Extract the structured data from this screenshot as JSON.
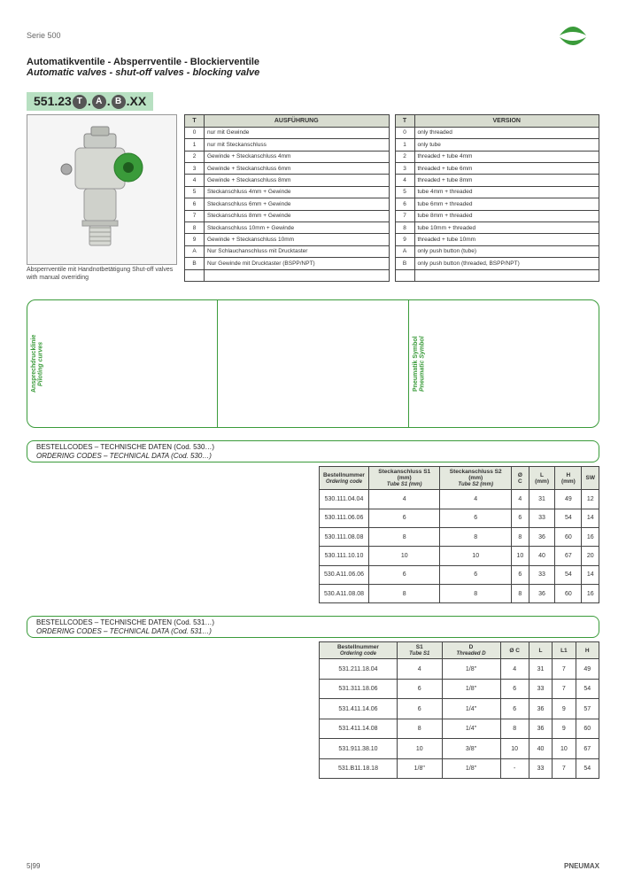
{
  "header": {
    "series_label": "Serie 500",
    "title_de": "Automatikventile - Absperrventile - Blockierventile",
    "title_en": "Automatic valves - shut-off valves - blocking valve"
  },
  "partcode": {
    "prefix": "551.23",
    "t": "T",
    "a": "A",
    "b": "B",
    "suffix": ".XX"
  },
  "product_caption": "Absperrventile mit Handnotbetätigung\nShut-off valves with manual overriding",
  "ausfuehrung": {
    "header": "AUSFÜHRUNG",
    "col_t": "T",
    "rows": [
      {
        "c": "0",
        "t": "nur mit Gewinde"
      },
      {
        "c": "1",
        "t": "nur mit Steckanschluss"
      },
      {
        "c": "2",
        "t": "Gewinde + Steckanschluss 4mm"
      },
      {
        "c": "3",
        "t": "Gewinde + Steckanschluss 6mm"
      },
      {
        "c": "4",
        "t": "Gewinde + Steckanschluss 8mm"
      },
      {
        "c": "5",
        "t": "Steckanschluss 4mm + Gewinde"
      },
      {
        "c": "6",
        "t": "Steckanschluss 6mm + Gewinde"
      },
      {
        "c": "7",
        "t": "Steckanschluss 8mm + Gewinde"
      },
      {
        "c": "8",
        "t": "Steckanschluss 10mm + Gewinde"
      },
      {
        "c": "9",
        "t": "Gewinde + Steckanschluss 10mm"
      },
      {
        "c": "A",
        "t": "Nur Schlauchanschluss mit Drucktaster"
      },
      {
        "c": "B",
        "t": "Nur Gewinde mit Drucktaster (BSPP/NPT)"
      },
      {
        "c": "",
        "t": ""
      }
    ]
  },
  "version": {
    "header": "VERSION",
    "col_t": "T",
    "rows": [
      {
        "c": "0",
        "t": "only threaded"
      },
      {
        "c": "1",
        "t": "only tube"
      },
      {
        "c": "2",
        "t": "threaded + tube 4mm"
      },
      {
        "c": "3",
        "t": "threaded + tube 6mm"
      },
      {
        "c": "4",
        "t": "threaded + tube 8mm"
      },
      {
        "c": "5",
        "t": "tube 4mm + threaded"
      },
      {
        "c": "6",
        "t": "tube 6mm + threaded"
      },
      {
        "c": "7",
        "t": "tube 8mm + threaded"
      },
      {
        "c": "8",
        "t": "tube 10mm + threaded"
      },
      {
        "c": "9",
        "t": "threaded + tube 10mm"
      },
      {
        "c": "A",
        "t": "only push button (tube)"
      },
      {
        "c": "B",
        "t": "only push button (threaded, BSPP/NPT)"
      },
      {
        "c": "",
        "t": ""
      }
    ]
  },
  "diagrams": {
    "label1_de": "Ansprechdrucklinie",
    "label1_en": "Piloting curves",
    "label3_de": "Pneumatik Symbol",
    "label3_en": "Pneumatic Symbol"
  },
  "section_530": {
    "hdr_de": "BESTELLCODES – TECHNISCHE DATEN (Cod. 530…)",
    "hdr_en": "ORDERING CODES – TECHNICAL DATA (Cod. 530…)",
    "table": {
      "head": [
        "Bestellnummer",
        "Steckanschluss S1 (mm)",
        "Steckanschluss S2 (mm)",
        "Ø C",
        "L (mm)",
        "H (mm)",
        "SW"
      ],
      "head_en": [
        "Ordering code",
        "Tube S1 (mm)",
        "Tube S2 (mm)",
        "",
        "",
        "",
        ""
      ],
      "rows": [
        [
          "530.111.04.04",
          "4",
          "4",
          "4",
          "31",
          "49",
          "12"
        ],
        [
          "530.111.06.06",
          "6",
          "6",
          "6",
          "33",
          "54",
          "14"
        ],
        [
          "530.111.08.08",
          "8",
          "8",
          "8",
          "36",
          "60",
          "16"
        ],
        [
          "530.111.10.10",
          "10",
          "10",
          "10",
          "40",
          "67",
          "20"
        ],
        [
          "530.A11.06.06",
          "6",
          "6",
          "6",
          "33",
          "54",
          "14"
        ],
        [
          "530.A11.08.08",
          "8",
          "8",
          "8",
          "36",
          "60",
          "16"
        ]
      ]
    }
  },
  "section_531": {
    "hdr_de": "BESTELLCODES – TECHNISCHE DATEN (Cod. 531…)",
    "hdr_en": "ORDERING CODES – TECHNICAL DATA (Cod. 531…)",
    "table": {
      "head": [
        "Bestellnummer",
        "S1",
        "D",
        "Ø C",
        "L",
        "L1",
        "H"
      ],
      "head_en": [
        "Ordering code",
        "Tube S1",
        "Threaded D",
        "",
        "",
        "",
        ""
      ],
      "rows": [
        [
          "531.211.18.04",
          "4",
          "1/8\"",
          "4",
          "31",
          "7",
          "49"
        ],
        [
          "531.311.18.06",
          "6",
          "1/8\"",
          "6",
          "33",
          "7",
          "54"
        ],
        [
          "531.411.14.06",
          "6",
          "1/4\"",
          "6",
          "36",
          "9",
          "57"
        ],
        [
          "531.411.14.08",
          "8",
          "1/4\"",
          "8",
          "36",
          "9",
          "60"
        ],
        [
          "531.911.38.10",
          "10",
          "3/8\"",
          "10",
          "40",
          "10",
          "67"
        ],
        [
          "531.B11.18.18",
          "1/8\"",
          "1/8\"",
          "-",
          "33",
          "7",
          "54"
        ]
      ]
    }
  },
  "footer": {
    "page": "5|99",
    "brand": "PNEUMAX"
  },
  "colors": {
    "green": "#3a9b3a",
    "mint": "#b8e0c2",
    "grid": "#444",
    "panel_bg": "#f5f5f5"
  }
}
